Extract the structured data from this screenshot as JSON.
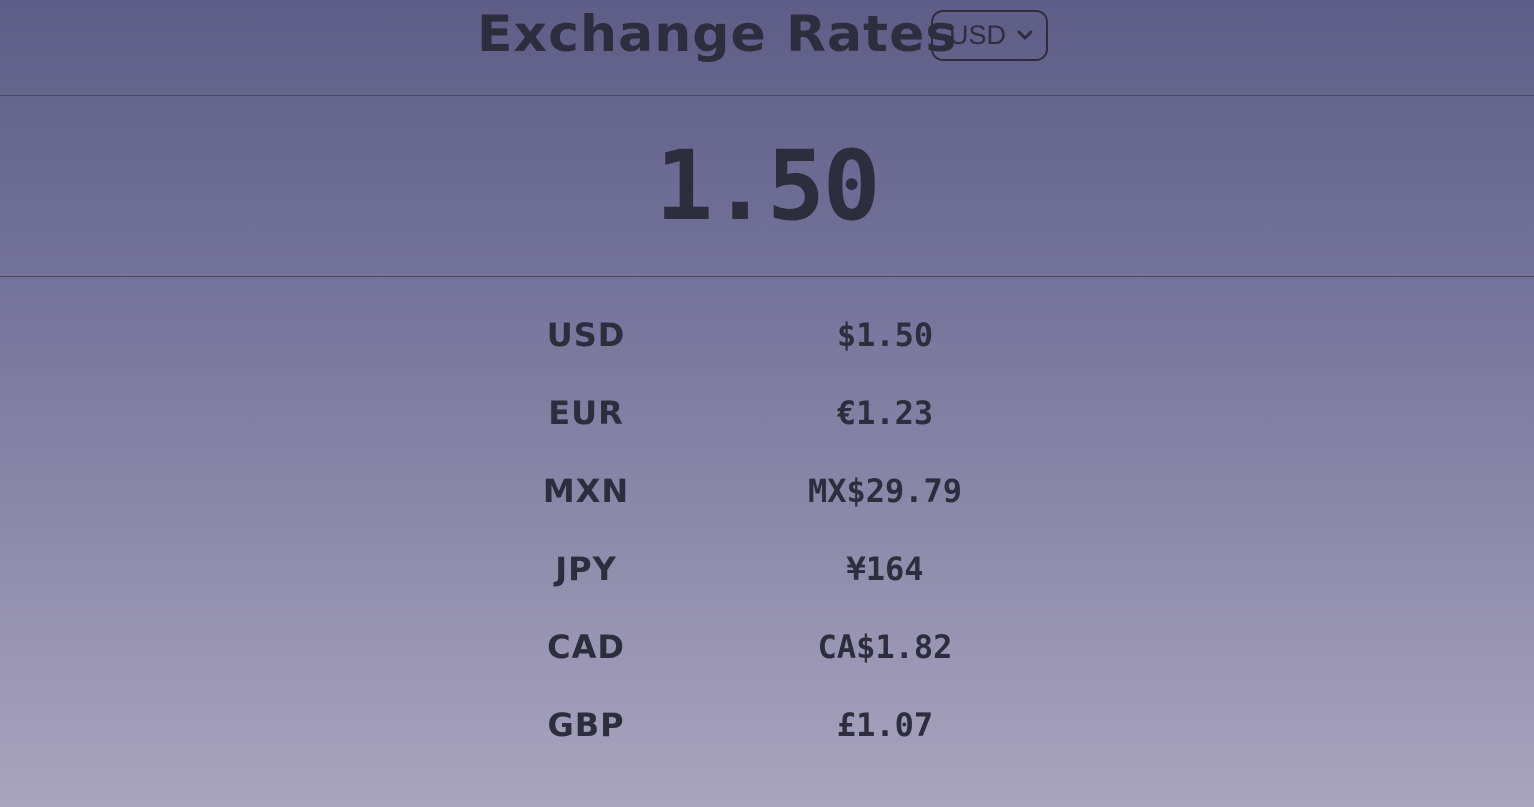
{
  "header": {
    "title": "Exchange Rates",
    "selected_currency": "USD"
  },
  "amount": "1.50",
  "rates": [
    {
      "code": "USD",
      "value": "$1.50"
    },
    {
      "code": "EUR",
      "value": "€1.23"
    },
    {
      "code": "MXN",
      "value": "MX$29.79"
    },
    {
      "code": "JPY",
      "value": "¥164"
    },
    {
      "code": "CAD",
      "value": "CA$1.82"
    },
    {
      "code": "GBP",
      "value": "£1.07"
    }
  ],
  "colors": {
    "text": "#2e2d3d",
    "bg_top": "#5d5d87",
    "bg_bottom": "#a9a5be"
  },
  "icons": {
    "select_chevron": "chevron-down-icon"
  }
}
